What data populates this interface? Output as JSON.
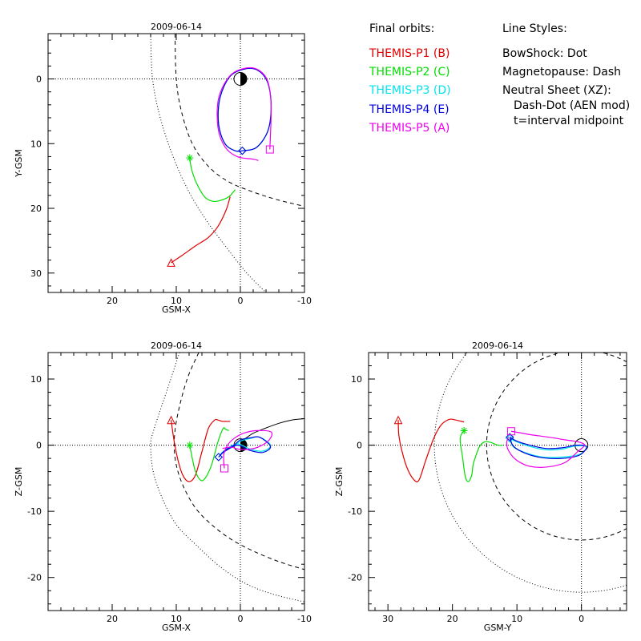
{
  "legend": {
    "heading": "Final orbits:",
    "items": [
      {
        "label": "THEMIS-P1 (B)",
        "color": "#e00000"
      },
      {
        "label": "THEMIS-P2 (C)",
        "color": "#00dd00"
      },
      {
        "label": "THEMIS-P3 (D)",
        "color": "#00e5ee"
      },
      {
        "label": "THEMIS-P4 (E)",
        "color": "#0000dd"
      },
      {
        "label": "THEMIS-P5 (A)",
        "color": "#ee00ee"
      }
    ]
  },
  "line_styles": {
    "heading": "Line Styles:",
    "lines": [
      "BowShock: Dot",
      "Magnetopause: Dash",
      "Neutral Sheet (XZ):",
      "Dash-Dot (AEN mod)",
      "t=interval midpoint"
    ]
  },
  "chart_data": [
    {
      "type": "line",
      "title": "2009-06-14",
      "xlabel": "GSM-X",
      "ylabel": "Y-GSM",
      "xlim": [
        30,
        -10
      ],
      "ylim": [
        33,
        -7
      ],
      "xticks": [
        20,
        10,
        0,
        -10
      ],
      "yticks": [
        0,
        10,
        20,
        30
      ],
      "series": [
        {
          "name": "THEMIS-P1 (B)",
          "x": [
            10.8,
            9,
            7,
            5,
            3.5,
            2.2,
            1.6
          ],
          "y": [
            28.4,
            27.2,
            25.8,
            24.5,
            22.8,
            20.2,
            18.2
          ]
        },
        {
          "name": "THEMIS-P2 (C)",
          "x": [
            7.9,
            7.6,
            6.8,
            5.6,
            4.4,
            3.2,
            1.8,
            0.8
          ],
          "y": [
            12.2,
            14,
            16.2,
            18.2,
            18.9,
            18.8,
            18.2,
            17.1
          ]
        },
        {
          "name": "THEMIS-P3 (D)",
          "x": [
            -0.3,
            -2.5,
            -4.3,
            -4.8,
            -4.2,
            -2.6,
            -0.5,
            1.7,
            3.2,
            3.4,
            2.4,
            0.8,
            -0.3
          ],
          "y": [
            11.1,
            10.6,
            8,
            4,
            0.4,
            -1.4,
            -1.5,
            -0.3,
            3,
            7,
            10,
            11.1,
            11.1
          ]
        },
        {
          "name": "THEMIS-P4 (E)",
          "x": [
            -0.3,
            -2.5,
            -4.3,
            -4.8,
            -4.2,
            -2.6,
            -0.5,
            1.7,
            3.2,
            3.4,
            2.4,
            0.8,
            -0.3
          ],
          "y": [
            11.1,
            10.6,
            8,
            4,
            0.4,
            -1.4,
            -1.5,
            -0.3,
            3,
            7,
            10,
            11.1,
            11.1
          ]
        },
        {
          "name": "THEMIS-P5 (A)",
          "x": [
            -4.6,
            -4.8,
            -4.2,
            -2.6,
            -0.5,
            1.7,
            3.4,
            3.5,
            2.4,
            0.5,
            -2,
            -2.8
          ],
          "y": [
            10.9,
            4,
            0.2,
            -1.5,
            -1.6,
            -0.4,
            3,
            7.5,
            10.5,
            12,
            12.4,
            12.6
          ]
        }
      ],
      "bow_shock": {
        "x": [
          14,
          13.7,
          12.5,
          10.5,
          8,
          5.2,
          2.2,
          -1,
          -4.5
        ],
        "y": [
          -7,
          0,
          6,
          12,
          17.5,
          22,
          26,
          30,
          33.5
        ]
      },
      "magnetopause": {
        "x": [
          10.2,
          10,
          9.2,
          7.5,
          5,
          2,
          -1.5,
          -5.5,
          -10
        ],
        "y": [
          -7,
          0,
          5,
          10,
          13.5,
          15.8,
          17.3,
          18.6,
          19.7
        ]
      }
    },
    {
      "type": "line",
      "title": "2009-06-14",
      "xlabel": "GSM-X",
      "ylabel": "Z-GSM",
      "xlim": [
        30,
        -10
      ],
      "ylim": [
        -25,
        14
      ],
      "xticks": [
        20,
        10,
        0,
        -10
      ],
      "yticks": [
        10,
        0,
        -10,
        -20
      ],
      "series": [
        {
          "name": "THEMIS-P1 (B)",
          "x": [
            10.8,
            10.4,
            9.8,
            9,
            8,
            7,
            6,
            5,
            4,
            3.5,
            2.8,
            1.6
          ],
          "y": [
            3.8,
            1,
            -2,
            -4.5,
            -5.5,
            -4.5,
            -1,
            2.5,
            3.8,
            3.8,
            3.6,
            3.6
          ]
        },
        {
          "name": "THEMIS-P2 (C)",
          "x": [
            7.9,
            7.5,
            7,
            6.2,
            5.5,
            4.5,
            3.5,
            2.7,
            2.3,
            1.8
          ],
          "y": [
            0,
            -2,
            -4,
            -5.3,
            -5,
            -3,
            0.5,
            2.5,
            2.4,
            2.2
          ]
        },
        {
          "name": "THEMIS-P3 (D)",
          "x": [
            3.4,
            2.4,
            1,
            0,
            -1.5,
            -3,
            -4.7,
            -3.5,
            -1.5,
            0.5,
            2.5,
            3.4
          ],
          "y": [
            -1.8,
            -0.8,
            -0.2,
            0.6,
            1,
            1.2,
            0,
            -0.9,
            -0.6,
            0.2,
            -0.8,
            -1.8
          ]
        },
        {
          "name": "THEMIS-P4 (E)",
          "x": [
            3.4,
            2.4,
            1,
            0,
            -1.5,
            -3,
            -4.7,
            -3.5,
            -1.5,
            0.5,
            2.5,
            3.4
          ],
          "y": [
            -1.8,
            -0.8,
            0,
            0.8,
            1.1,
            1.2,
            -0.2,
            -1.1,
            -0.8,
            0,
            -1,
            -1.8
          ]
        },
        {
          "name": "THEMIS-P5 (A)",
          "x": [
            2.5,
            2.6,
            2,
            1,
            -0.5,
            -2.5,
            -4.8,
            -4.5,
            -3,
            -1.5,
            0.3,
            1.4,
            2.8
          ],
          "y": [
            -3.5,
            -1.5,
            0,
            1,
            1.8,
            2.2,
            2,
            0.8,
            -0.2,
            -0.6,
            -0.6,
            -0.3,
            -0.5
          ]
        }
      ],
      "neutral_sheet": {
        "x": [
          -0.5,
          -2,
          -4,
          -6,
          -8,
          -10
        ],
        "y": [
          0.8,
          1.8,
          2.6,
          3.3,
          3.8,
          4
        ]
      },
      "bow_shock": {
        "x": [
          9.5,
          11.2,
          12.6,
          13.6,
          14,
          13.6,
          12.2,
          10,
          7,
          3,
          -1,
          -5,
          -10
        ],
        "y": [
          14,
          9,
          5,
          2,
          0,
          -4,
          -8,
          -12,
          -15,
          -18.5,
          -21,
          -22.5,
          -23.7
        ]
      },
      "magnetopause": {
        "x": [
          6.5,
          8.3,
          9.7,
          10.3,
          10.1,
          9,
          7,
          4.5,
          1.5,
          -2,
          -6,
          -10
        ],
        "y": [
          14,
          10,
          5,
          1,
          -2.5,
          -6,
          -9.5,
          -12,
          -14.2,
          -16,
          -17.6,
          -18.8
        ]
      }
    },
    {
      "type": "line",
      "title": "2009-06-14",
      "xlabel": "GSM-Y",
      "ylabel": "Z-GSM",
      "xlim": [
        33,
        -7
      ],
      "ylim": [
        -25,
        14
      ],
      "xticks": [
        30,
        20,
        10,
        0
      ],
      "yticks": [
        10,
        0,
        -10,
        -20
      ],
      "series": [
        {
          "name": "THEMIS-P1 (B)",
          "x": [
            28.4,
            28.3,
            27.8,
            27,
            26,
            25.2,
            24.2,
            23,
            21.8,
            20.5,
            19.5,
            18.2
          ],
          "y": [
            3.8,
            1.5,
            -1,
            -3.5,
            -5.2,
            -5.3,
            -2.5,
            0.8,
            3,
            3.9,
            3.8,
            3.5
          ]
        },
        {
          "name": "THEMIS-P2 (C)",
          "x": [
            18.2,
            18.8,
            18.4,
            18,
            17.5,
            17,
            16.8,
            16.5,
            15.8,
            15,
            14,
            13,
            12.2
          ],
          "y": [
            2.2,
            1,
            -2,
            -4.8,
            -5.5,
            -4.5,
            -3,
            -2,
            -0.2,
            0.5,
            0.4,
            0,
            0
          ]
        },
        {
          "name": "THEMIS-P3 (D)",
          "x": [
            11.1,
            10,
            8,
            5.5,
            3,
            0.8,
            -0.8,
            0.3,
            3,
            6,
            8.5,
            10.5,
            11.1
          ],
          "y": [
            1,
            0.5,
            -0.2,
            -0.7,
            -0.6,
            -0.1,
            -0.3,
            -1.4,
            -1.8,
            -1.8,
            -1.2,
            -0.3,
            1
          ]
        },
        {
          "name": "THEMIS-P4 (E)",
          "x": [
            11.1,
            10,
            8,
            5.5,
            3,
            0.8,
            -0.8,
            0.3,
            3,
            6,
            8.5,
            10.5,
            11.1
          ],
          "y": [
            1.2,
            0.6,
            0,
            -0.5,
            -0.4,
            0,
            -0.2,
            -1.5,
            -2,
            -1.9,
            -1.3,
            -0.2,
            1.2
          ]
        },
        {
          "name": "THEMIS-P5 (A)",
          "x": [
            10.9,
            10.2,
            8,
            5,
            2.5,
            0.5,
            -0.5,
            0.6,
            2.5,
            5.3,
            8,
            10,
            11.2,
            11.6,
            11.3
          ],
          "y": [
            2.1,
            2,
            1.6,
            1.2,
            0.8,
            0.5,
            0,
            -1,
            -2.6,
            -3.3,
            -3.2,
            -2.3,
            -1,
            0.3,
            1.2
          ]
        }
      ],
      "bow_shock_radius": 22.8,
      "magnetopause_radius": 14.7
    }
  ]
}
